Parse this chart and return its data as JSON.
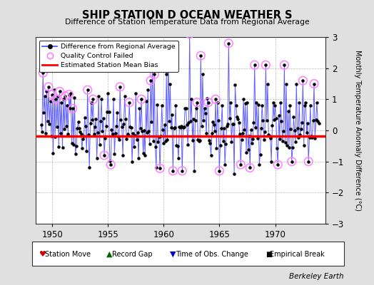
{
  "title": "SHIP STATION D OCEAN WEATHER S",
  "subtitle": "Difference of Station Temperature Data from Regional Average",
  "ylabel": "Monthly Temperature Anomaly Difference (°C)",
  "xlim": [
    1948.5,
    1974.5
  ],
  "ylim": [
    -3,
    3
  ],
  "yticks": [
    -3,
    -2,
    -1,
    0,
    1,
    2,
    3
  ],
  "xticks": [
    1950,
    1955,
    1960,
    1965,
    1970
  ],
  "mean_bias": -0.18,
  "background_color": "#e0e0e0",
  "plot_bg_color": "#ffffff",
  "line_color": "#4444ff",
  "dot_color": "#000000",
  "bias_color": "#ff0000",
  "qc_color": "#ff80ff",
  "watermark": "Berkeley Earth",
  "seed": 42,
  "n_months": 300,
  "start_year": 1949.0,
  "end_year": 1973.9
}
